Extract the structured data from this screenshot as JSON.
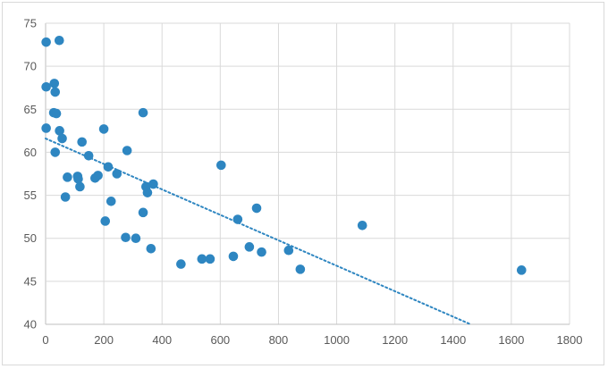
{
  "chart_data": {
    "type": "scatter",
    "title": "",
    "xlabel": "",
    "ylabel": "",
    "xlim": [
      0,
      1800
    ],
    "ylim": [
      40,
      75
    ],
    "x_ticks": [
      "0",
      "200",
      "400",
      "600",
      "800",
      "1000",
      "1200",
      "1400",
      "1600",
      "1800"
    ],
    "y_ticks": [
      "40",
      "45",
      "50",
      "55",
      "60",
      "65",
      "70",
      "75"
    ],
    "grid": true,
    "legend": "none",
    "marker_color": "#2e86c1",
    "trendline": {
      "type": "linear",
      "style": "dotted",
      "color": "#2e86c1",
      "from": [
        0,
        61.6
      ],
      "to": [
        1460,
        40
      ]
    },
    "points": [
      {
        "x": 2,
        "y": 72.8
      },
      {
        "x": 47,
        "y": 73
      },
      {
        "x": 2,
        "y": 67.6
      },
      {
        "x": 30,
        "y": 68
      },
      {
        "x": 33,
        "y": 67
      },
      {
        "x": 28,
        "y": 64.6
      },
      {
        "x": 37,
        "y": 64.5
      },
      {
        "x": 2,
        "y": 62.8
      },
      {
        "x": 48,
        "y": 62.5
      },
      {
        "x": 57,
        "y": 61.6
      },
      {
        "x": 33,
        "y": 60
      },
      {
        "x": 125,
        "y": 61.2
      },
      {
        "x": 200,
        "y": 62.7
      },
      {
        "x": 335,
        "y": 64.6
      },
      {
        "x": 280,
        "y": 60.2
      },
      {
        "x": 148,
        "y": 59.6
      },
      {
        "x": 215,
        "y": 58.3
      },
      {
        "x": 75,
        "y": 57.1
      },
      {
        "x": 110,
        "y": 57.2
      },
      {
        "x": 112,
        "y": 56.9
      },
      {
        "x": 170,
        "y": 57
      },
      {
        "x": 180,
        "y": 57.3
      },
      {
        "x": 245,
        "y": 57.5
      },
      {
        "x": 118,
        "y": 56
      },
      {
        "x": 68,
        "y": 54.8
      },
      {
        "x": 345,
        "y": 56
      },
      {
        "x": 370,
        "y": 56.3
      },
      {
        "x": 350,
        "y": 55.3
      },
      {
        "x": 225,
        "y": 54.3
      },
      {
        "x": 335,
        "y": 53
      },
      {
        "x": 205,
        "y": 52
      },
      {
        "x": 275,
        "y": 50.1
      },
      {
        "x": 310,
        "y": 50
      },
      {
        "x": 362,
        "y": 48.8
      },
      {
        "x": 465,
        "y": 47
      },
      {
        "x": 537,
        "y": 47.6
      },
      {
        "x": 565,
        "y": 47.6
      },
      {
        "x": 603,
        "y": 58.5
      },
      {
        "x": 660,
        "y": 52.2
      },
      {
        "x": 645,
        "y": 47.9
      },
      {
        "x": 700,
        "y": 49
      },
      {
        "x": 725,
        "y": 53.5
      },
      {
        "x": 742,
        "y": 48.4
      },
      {
        "x": 835,
        "y": 48.6
      },
      {
        "x": 875,
        "y": 46.4
      },
      {
        "x": 1088,
        "y": 51.5
      },
      {
        "x": 1635,
        "y": 46.3
      }
    ]
  }
}
